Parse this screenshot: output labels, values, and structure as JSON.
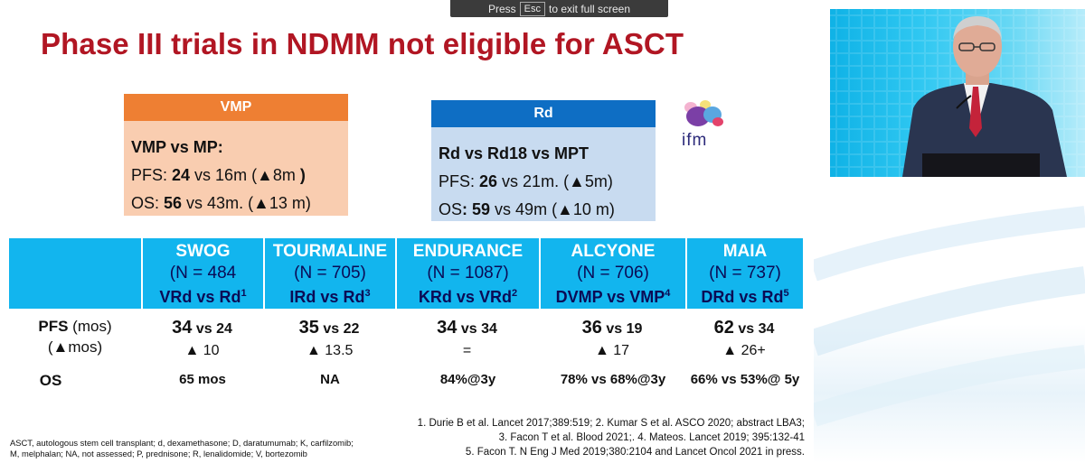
{
  "fullscreen_notice": {
    "press": "Press",
    "key": "Esc",
    "rest": "to exit full screen"
  },
  "slide": {
    "title": "Phase III trials in NDMM not eligible for ASCT",
    "vmp_box": {
      "header": "VMP",
      "line1": "VMP vs MP:",
      "pfs_label": "PFS: ",
      "pfs_bold": "24",
      "pfs_rest": " vs 16m (▲8m",
      "pfs_close": " )",
      "os_label": "OS: ",
      "os_bold": "56",
      "os_rest": " vs 43m. (▲13 m)"
    },
    "rd_box": {
      "header": "Rd",
      "line1": "Rd vs Rd18 vs MPT",
      "pfs_label": "PFS: ",
      "pfs_bold": "26",
      "pfs_rest": " vs 21m. (▲5m)",
      "os_label": "OS",
      "os_bold": ": 59",
      "os_rest": " vs 49m  (▲10 m)"
    },
    "logo_text": "ifm",
    "trials": [
      {
        "name": "SWOG",
        "n": "(N = 484",
        "cmp": "VRd vs Rd",
        "ref": "1",
        "pfs_a": "34",
        "pfs_vs": " vs ",
        "pfs_b": "24",
        "delta": "▲ 10",
        "os": "65 mos"
      },
      {
        "name": "TOURMALINE",
        "n": "(N = 705)",
        "cmp": "IRd vs Rd",
        "ref": "3",
        "pfs_a": "35",
        "pfs_vs": " vs ",
        "pfs_b": "22",
        "delta": "▲ 13.5",
        "os": "NA"
      },
      {
        "name": "ENDURANCE",
        "n": "(N = 1087)",
        "cmp": "KRd vs VRd",
        "ref": "2",
        "pfs_a": "34",
        "pfs_vs": " vs ",
        "pfs_b": "34",
        "delta": "=",
        "os": "84%@3y"
      },
      {
        "name": "ALCYONE",
        "n": "(N = 706)",
        "cmp": "DVMP vs VMP",
        "ref": "4",
        "pfs_a": "36",
        "pfs_vs": " vs ",
        "pfs_b": "19",
        "delta": "▲ 17",
        "os": "78% vs 68%@3y"
      },
      {
        "name": "MAIA",
        "n": "(N = 737)",
        "cmp": "DRd vs Rd",
        "ref": "5",
        "pfs_a": "62",
        "pfs_vs": " vs ",
        "pfs_b": "34",
        "delta": "▲ 26+",
        "os": "66% vs 53%@ 5y"
      }
    ],
    "row_labels": {
      "pfs": "PFS",
      "pfs_unit": " (mos)",
      "pfs_delta": "(▲mos)",
      "os": "OS"
    },
    "abbreviations": {
      "line1": "ASCT, autologous stem cell transplant; d, dexamethasone; D, daratumumab; K, carfilzomib;",
      "line2": "M, melphalan; NA, not assessed; P, prednisone; R, lenalidomide; V, bortezomib"
    },
    "references": {
      "line1": "1. Durie B et al. Lancet 2017;389:519; 2. Kumar S et al. ASCO 2020; abstract LBA3;",
      "line2": "3. Facon T et al. Blood 2021;. 4. Mateos. Lancet 2019; 395:132-41",
      "line3": "5. Facon T. N Eng J Med 2019;380:2104 and Lancet Oncol 2021 in press."
    }
  },
  "colors": {
    "title": "#b11623",
    "vmp_header": "#ee7f33",
    "vmp_body": "#f9cdb0",
    "rd_header": "#0e6ec4",
    "rd_body": "#c8dbf0",
    "table_header": "#12b5ee"
  }
}
